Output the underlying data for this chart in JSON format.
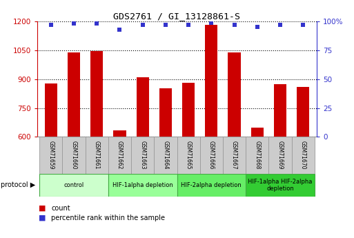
{
  "title": "GDS2761 / GI_13128861-S",
  "samples": [
    "GSM71659",
    "GSM71660",
    "GSM71661",
    "GSM71662",
    "GSM71663",
    "GSM71664",
    "GSM71665",
    "GSM71666",
    "GSM71667",
    "GSM71668",
    "GSM71669",
    "GSM71670"
  ],
  "counts": [
    878,
    1038,
    1047,
    632,
    908,
    853,
    882,
    1183,
    1038,
    648,
    873,
    858
  ],
  "percentiles": [
    97,
    98,
    98,
    93,
    97,
    97,
    97,
    99,
    97,
    95,
    97,
    97
  ],
  "ylim_left": [
    600,
    1200
  ],
  "ylim_right": [
    0,
    100
  ],
  "yticks_left": [
    600,
    750,
    900,
    1050,
    1200
  ],
  "yticks_right": [
    0,
    25,
    50,
    75,
    100
  ],
  "bar_color": "#cc0000",
  "dot_color": "#3333cc",
  "bar_width": 0.55,
  "protocol_colors": [
    "#ccffcc",
    "#99ff99",
    "#66ee66",
    "#33cc33"
  ],
  "protocol_labels": [
    "control",
    "HIF-1alpha depletion",
    "HIF-2alpha depletion",
    "HIF-1alpha HIF-2alpha\ndepletion"
  ],
  "protocol_starts": [
    0,
    3,
    6,
    9
  ],
  "protocol_ends": [
    3,
    6,
    9,
    12
  ],
  "legend_count_label": "count",
  "legend_pct_label": "percentile rank within the sample",
  "background_color": "#ffffff",
  "tick_color_left": "#cc0000",
  "tick_color_right": "#3333cc",
  "sample_box_color": "#cccccc",
  "sample_box_edge": "#999999"
}
